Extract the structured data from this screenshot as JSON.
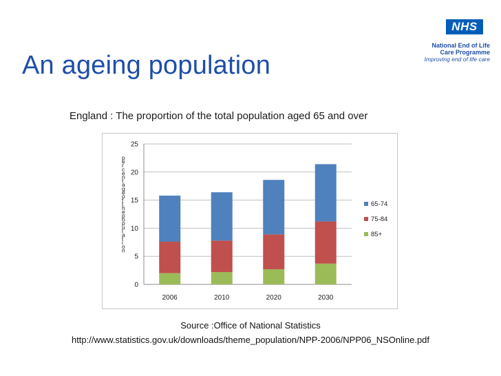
{
  "slide": {
    "title": "An ageing population",
    "source": "Source :Office of National Statistics",
    "url": "http://www.statistics.gov.uk/downloads/theme_population/NPP-2006/NPP06_NSOnline.pdf"
  },
  "branding": {
    "logo_text": "NHS",
    "line1": "National End of Life",
    "line2": "Care Programme",
    "line3": "Improving end of life care",
    "logo_color": "#005eb8"
  },
  "chart_data": {
    "type": "bar",
    "stacked": true,
    "title": "England : The proportion of the total population aged 65 and over",
    "ylabel": "percentage of the population",
    "xlabel": "",
    "categories": [
      "2006",
      "2010",
      "2020",
      "2030"
    ],
    "ylim": [
      0,
      25
    ],
    "yticks": [
      0,
      5,
      10,
      15,
      20,
      25
    ],
    "grid": true,
    "legend_position": "right",
    "series": [
      {
        "name": "85+",
        "color": "#9bbb59",
        "values": [
          2.0,
          2.2,
          2.7,
          3.7
        ]
      },
      {
        "name": "75-84",
        "color": "#c0504d",
        "values": [
          5.6,
          5.6,
          6.2,
          7.5
        ]
      },
      {
        "name": "65-74",
        "color": "#4f81bd",
        "values": [
          8.2,
          8.6,
          9.7,
          10.2
        ]
      }
    ],
    "legend_order": [
      "65-74",
      "75-84",
      "85+"
    ]
  }
}
